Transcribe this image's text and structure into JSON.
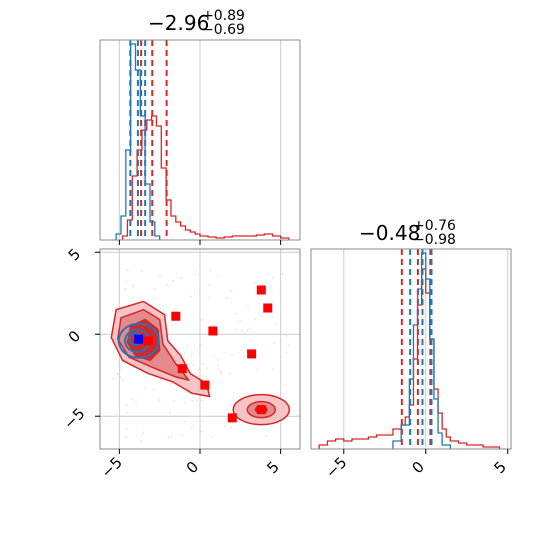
{
  "colors": {
    "red": "#d62728",
    "blue": "#1f77b4",
    "marker_red": "#ff0000",
    "marker_blue": "#0000ff",
    "grid": "#cccccc"
  },
  "chart_data": [
    {
      "type": "histogram",
      "panel": "top-left",
      "title": {
        "main": "−2.96",
        "sup": "+0.89",
        "sub": "−0.69"
      },
      "xlim": [
        -6.2,
        6.2
      ],
      "grid": true,
      "series": [
        {
          "color": "red",
          "bins": [
            -4.8,
            -4.5,
            -4.2,
            -3.9,
            -3.6,
            -3.3,
            -3.0,
            -2.7,
            -2.4,
            -2.1,
            -1.8,
            -1.5,
            -1.2,
            -0.9,
            -0.6,
            -0.3,
            0,
            0.5,
            1,
            1.5,
            2,
            2.5,
            3,
            3.5,
            4,
            4.5,
            5,
            5.5
          ],
          "counts": [
            0.02,
            0.1,
            0.32,
            0.45,
            0.55,
            0.6,
            0.62,
            0.57,
            0.36,
            0.2,
            0.12,
            0.09,
            0.07,
            0.05,
            0.04,
            0.03,
            0.02,
            0.015,
            0.01,
            0.015,
            0.02,
            0.02,
            0.02,
            0.025,
            0.03,
            0.02,
            0.01
          ],
          "quantile_lines": [
            -3.65,
            -2.96,
            -2.07
          ]
        },
        {
          "color": "blue",
          "bins": [
            -5.2,
            -4.9,
            -4.6,
            -4.3,
            -4.0,
            -3.7,
            -3.4,
            -3.1,
            -2.8,
            -2.5
          ],
          "counts": [
            0.03,
            0.12,
            0.45,
            0.98,
            0.85,
            0.62,
            0.28,
            0.09,
            0.02
          ],
          "quantile_lines": [
            -4.32,
            -3.85,
            -3.4
          ]
        }
      ],
      "tick_labels": []
    },
    {
      "type": "contour",
      "panel": "bottom-left",
      "xlim": [
        -6.2,
        6.2
      ],
      "ylim": [
        -7,
        5.2
      ],
      "x_tick_labels": [
        "−5",
        "0",
        "5"
      ],
      "y_tick_labels": [
        "5",
        "0",
        "−5"
      ],
      "grid": true,
      "red_markers": [
        [
          3.8,
          2.7
        ],
        [
          4.2,
          1.6
        ],
        [
          -1.5,
          1.1
        ],
        [
          0.8,
          0.2
        ],
        [
          -3.2,
          -0.4
        ],
        [
          3.2,
          -1.2
        ],
        [
          -1.1,
          -2.1
        ],
        [
          0.3,
          -3.1
        ],
        [
          2.0,
          -5.1
        ],
        [
          3.8,
          -4.6
        ]
      ],
      "blue_marker": [
        -3.8,
        -0.3
      ],
      "regions": [
        "main cluster around (-3.5, -0.5)",
        "secondary cluster around (3.8, -4.6)"
      ]
    },
    {
      "type": "histogram",
      "panel": "bottom-right",
      "title": {
        "main": "−0.48",
        "sup": "+0.76",
        "sub": "−0.98"
      },
      "xlim": [
        -7,
        5.2
      ],
      "x_tick_labels": [
        "−5",
        "0",
        "5"
      ],
      "grid": true,
      "series": [
        {
          "color": "red",
          "bins": [
            -6.5,
            -6.0,
            -5.5,
            -5.0,
            -4.5,
            -4.0,
            -3.5,
            -3.0,
            -2.5,
            -2.0,
            -1.5,
            -1.25,
            -1.0,
            -0.75,
            -0.5,
            -0.25,
            0,
            0.25,
            0.5,
            0.75,
            1.0,
            1.25,
            1.5,
            2.0,
            2.5,
            3.0,
            3.5,
            4.0,
            4.5
          ],
          "counts": [
            0.02,
            0.04,
            0.05,
            0.04,
            0.05,
            0.05,
            0.06,
            0.07,
            0.07,
            0.1,
            0.12,
            0.16,
            0.22,
            0.45,
            0.72,
            0.9,
            0.78,
            0.55,
            0.3,
            0.18,
            0.1,
            0.06,
            0.04,
            0.03,
            0.02,
            0.02,
            0.01,
            0.01
          ],
          "quantile_lines": [
            -1.46,
            -0.48,
            0.28
          ]
        },
        {
          "color": "blue",
          "bins": [
            -2.0,
            -1.5,
            -1.0,
            -0.75,
            -0.5,
            -0.25,
            0,
            0.25,
            0.5,
            0.75,
            1.0,
            1.5
          ],
          "counts": [
            0.04,
            0.12,
            0.35,
            0.62,
            0.8,
            0.98,
            0.85,
            0.55,
            0.25,
            0.08,
            0.02
          ],
          "quantile_lines": [
            -0.95,
            -0.2,
            0.35
          ]
        }
      ]
    }
  ]
}
